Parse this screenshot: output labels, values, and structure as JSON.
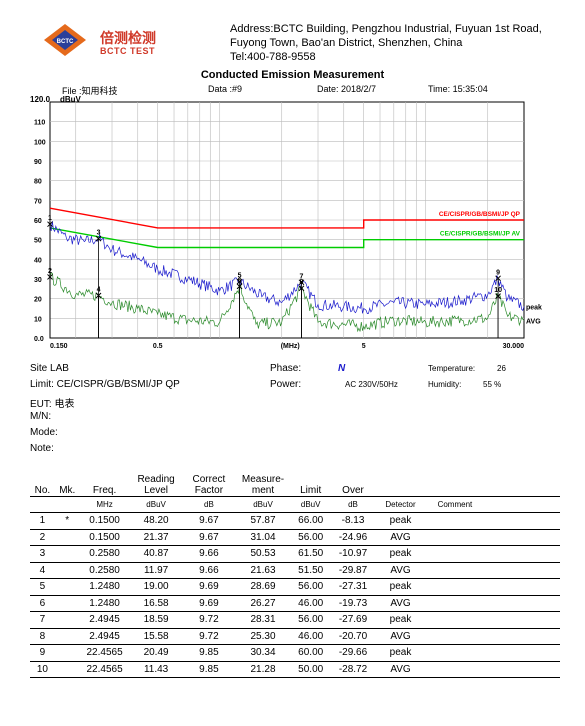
{
  "header": {
    "logo_cn": "倍测检测",
    "logo_en": "BCTC TEST",
    "address_lines": [
      "Address:BCTC Building, Pengzhou Industrial, Fuyuan 1st Road,",
      "Fuyong Town, Bao'an District, Shenzhen, China",
      "Tel:400-788-9558"
    ],
    "title": "Conducted Emission Measurement",
    "file": "File :知用科技",
    "data": "Data :#9",
    "date": "Date: 2018/2/7",
    "time": "Time: 15:35:04"
  },
  "chart_data": {
    "type": "line",
    "y_unit": "dBuV",
    "ylim": [
      0,
      120
    ],
    "yticks": [
      "0.0",
      "10",
      "20",
      "30",
      "40",
      "50",
      "60",
      "70",
      "80",
      "90",
      "100",
      "110",
      "120.0"
    ],
    "xscale": "log",
    "xlim": [
      0.15,
      30
    ],
    "xtick_labels": [
      {
        "x": 0.15,
        "label": "0.150"
      },
      {
        "x": 0.5,
        "label": "0.5"
      },
      {
        "x": 2.2,
        "label": "(MHz)"
      },
      {
        "x": 5,
        "label": "5"
      },
      {
        "x": 30,
        "label": "30.000"
      }
    ],
    "grid": true,
    "limit_lines": [
      {
        "name": "CE/CISPR/GB/BSMI/JP QP",
        "color": "#ff0000",
        "points": [
          [
            0.15,
            66
          ],
          [
            0.5,
            56
          ],
          [
            5,
            56
          ],
          [
            5,
            60
          ],
          [
            30,
            60
          ]
        ]
      },
      {
        "name": "CE/CISPR/GB/BSMI/JP AV",
        "color": "#00cc00",
        "points": [
          [
            0.15,
            56
          ],
          [
            0.5,
            46
          ],
          [
            5,
            46
          ],
          [
            5,
            50
          ],
          [
            30,
            50
          ]
        ]
      }
    ],
    "series": [
      {
        "name": "peak",
        "color": "#1a1acc",
        "points": [
          [
            0.15,
            57.9
          ],
          [
            0.18,
            51
          ],
          [
            0.22,
            49
          ],
          [
            0.258,
            50.5
          ],
          [
            0.3,
            45
          ],
          [
            0.4,
            40
          ],
          [
            0.5,
            35
          ],
          [
            0.7,
            30
          ],
          [
            1.0,
            24
          ],
          [
            1.248,
            28.7
          ],
          [
            1.6,
            21
          ],
          [
            2.0,
            18
          ],
          [
            2.4945,
            28.3
          ],
          [
            3.0,
            17
          ],
          [
            4.0,
            16
          ],
          [
            5.0,
            15
          ],
          [
            7.0,
            18
          ],
          [
            10,
            17
          ],
          [
            15,
            19
          ],
          [
            20,
            22
          ],
          [
            22.4565,
            30.3
          ],
          [
            25,
            20
          ],
          [
            30,
            16
          ]
        ]
      },
      {
        "name": "AVG",
        "color": "#2a8a2a",
        "points": [
          [
            0.15,
            31
          ],
          [
            0.2,
            22
          ],
          [
            0.258,
            21.6
          ],
          [
            0.3,
            18
          ],
          [
            0.4,
            15
          ],
          [
            0.5,
            12
          ],
          [
            0.7,
            9
          ],
          [
            1.0,
            8
          ],
          [
            1.248,
            26.3
          ],
          [
            1.5,
            7
          ],
          [
            2.0,
            8
          ],
          [
            2.4945,
            25.3
          ],
          [
            3.0,
            8
          ],
          [
            5.0,
            6
          ],
          [
            7.0,
            9
          ],
          [
            10,
            8
          ],
          [
            15,
            9
          ],
          [
            20,
            10
          ],
          [
            22.4565,
            21.3
          ],
          [
            25,
            11
          ],
          [
            30,
            9
          ]
        ]
      }
    ],
    "markers": [
      {
        "n": "1",
        "x": 0.15,
        "y": 57.87
      },
      {
        "n": "2",
        "x": 0.15,
        "y": 31.04
      },
      {
        "n": "3",
        "x": 0.258,
        "y": 50.53
      },
      {
        "n": "4",
        "x": 0.258,
        "y": 21.63
      },
      {
        "n": "5",
        "x": 1.248,
        "y": 28.69
      },
      {
        "n": "6",
        "x": 1.248,
        "y": 26.27
      },
      {
        "n": "7",
        "x": 2.4945,
        "y": 28.31
      },
      {
        "n": "8",
        "x": 2.4945,
        "y": 25.3
      },
      {
        "n": "9",
        "x": 22.4565,
        "y": 30.34
      },
      {
        "n": "10",
        "x": 22.4565,
        "y": 21.28
      }
    ],
    "right_labels": [
      "peak",
      "AVG"
    ]
  },
  "info": {
    "site": "Site  LAB",
    "limit": "Limit:  CE/CISPR/GB/BSMI/JP QP",
    "eut": "EUT:  电表",
    "mn": "M/N:",
    "mode": "Mode:",
    "note": "Note:",
    "phase_label": "Phase:",
    "phase_value": "N",
    "power_label": "Power:",
    "power_value": "AC 230V/50Hz",
    "temp_label": "Temperature:",
    "temp_value": "26",
    "hum_label": "Humidity:",
    "hum_value": "55 %"
  },
  "table": {
    "headers": [
      "No.",
      "Mk.",
      "Freq.",
      "Reading\nLevel",
      "Correct\nFactor",
      "Measure-\nment",
      "Limit",
      "Over",
      "",
      "",
      ""
    ],
    "units": [
      "",
      "",
      "MHz",
      "dBuV",
      "dB",
      "dBuV",
      "dBuV",
      "dB",
      "Detector",
      "Comment",
      ""
    ],
    "rows": [
      [
        "1",
        "*",
        "0.1500",
        "48.20",
        "9.67",
        "57.87",
        "66.00",
        "-8.13",
        "peak"
      ],
      [
        "2",
        "",
        "0.1500",
        "21.37",
        "9.67",
        "31.04",
        "56.00",
        "-24.96",
        "AVG"
      ],
      [
        "3",
        "",
        "0.2580",
        "40.87",
        "9.66",
        "50.53",
        "61.50",
        "-10.97",
        "peak"
      ],
      [
        "4",
        "",
        "0.2580",
        "11.97",
        "9.66",
        "21.63",
        "51.50",
        "-29.87",
        "AVG"
      ],
      [
        "5",
        "",
        "1.2480",
        "19.00",
        "9.69",
        "28.69",
        "56.00",
        "-27.31",
        "peak"
      ],
      [
        "6",
        "",
        "1.2480",
        "16.58",
        "9.69",
        "26.27",
        "46.00",
        "-19.73",
        "AVG"
      ],
      [
        "7",
        "",
        "2.4945",
        "18.59",
        "9.72",
        "28.31",
        "56.00",
        "-27.69",
        "peak"
      ],
      [
        "8",
        "",
        "2.4945",
        "15.58",
        "9.72",
        "25.30",
        "46.00",
        "-20.70",
        "AVG"
      ],
      [
        "9",
        "",
        "22.4565",
        "20.49",
        "9.85",
        "30.34",
        "60.00",
        "-29.66",
        "peak"
      ],
      [
        "10",
        "",
        "22.4565",
        "11.43",
        "9.85",
        "21.28",
        "50.00",
        "-28.72",
        "AVG"
      ]
    ]
  }
}
